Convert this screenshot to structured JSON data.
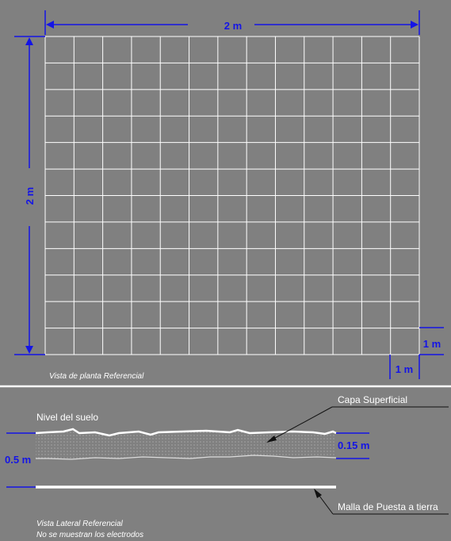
{
  "plan_view": {
    "width_label": "2 m",
    "height_label": "2 m",
    "cell_width_label": "1 m",
    "cell_height_label": "1 m",
    "caption": "Vista de planta Referencial",
    "grid_columns": 13,
    "grid_rows": 12
  },
  "side_view": {
    "ground_label": "Nivel del suelo",
    "surface_layer_label": "Capa Superficial",
    "surface_layer_depth_label": "0.15 m",
    "grid_depth_label": "0.5 m",
    "grounding_grid_label": "Malla de Puesta a tierra",
    "caption_line1": "Vista Lateral Referencial",
    "caption_line2": "No se muestran los electrodos"
  },
  "colors": {
    "background": "#808080",
    "dimension": "#1414e6",
    "grid": "#ffffff",
    "separator": "#ffffff"
  }
}
